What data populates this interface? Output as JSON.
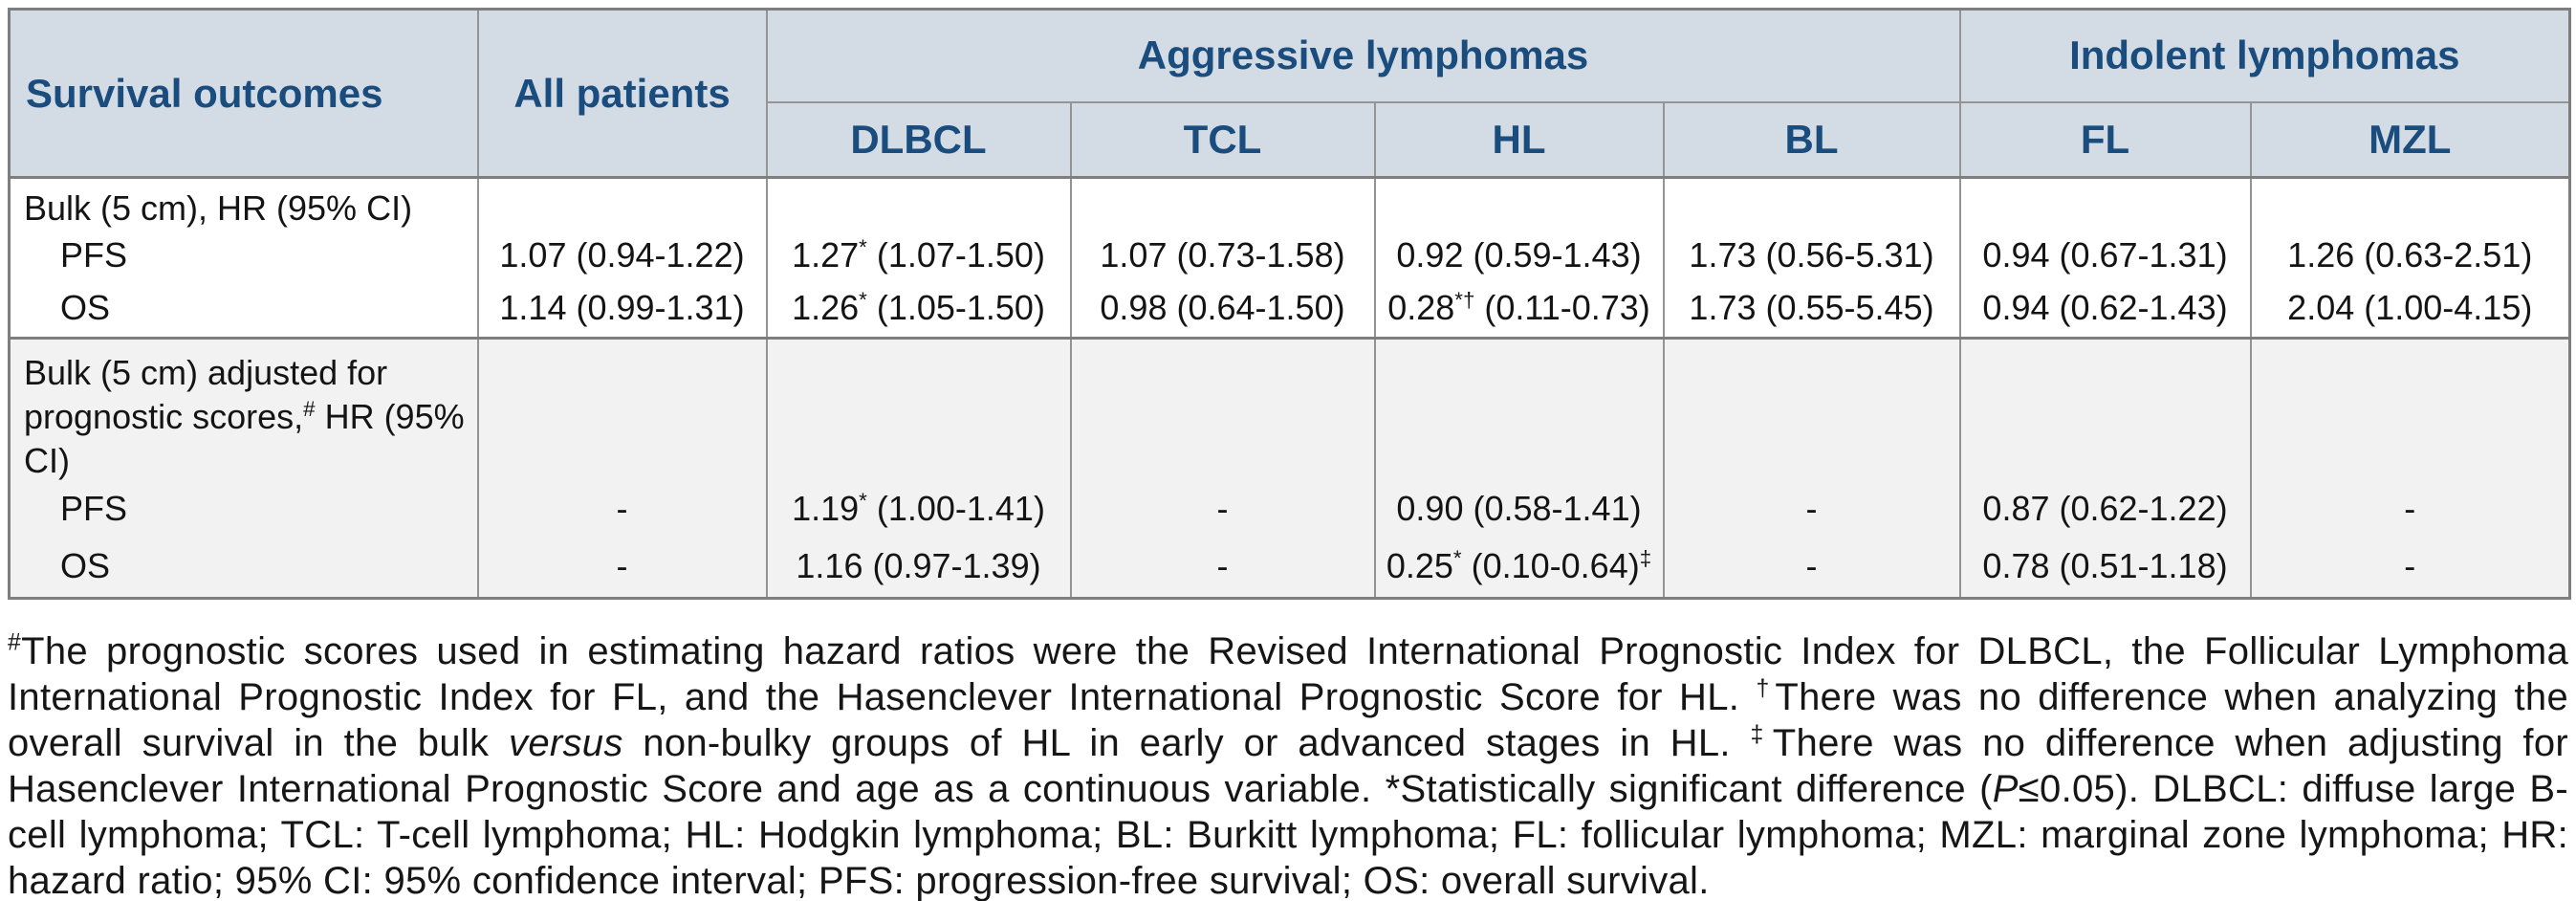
{
  "colors": {
    "header_bg": "#d3dce5",
    "header_text": "#1a4c7e",
    "section2_bg": "#f2f2f3",
    "border": "#949494",
    "body_text": "#161616"
  },
  "header": {
    "survival_outcomes": "Survival outcomes",
    "all_patients": "All patients",
    "group_aggressive": "Aggressive lymphomas",
    "group_indolent": "Indolent lymphomas",
    "subcolumns": [
      "DLBCL",
      "TCL",
      "HL",
      "BL",
      "FL",
      "MZL"
    ]
  },
  "sections": [
    {
      "label": [
        {
          "t": "Bulk (5 cm), HR (95% CI)"
        }
      ],
      "rows": [
        {
          "label": "PFS",
          "values": [
            "1.07 (0.94-1.22)",
            [
              {
                "t": "1.27"
              },
              {
                "t": "*",
                "sup": true
              },
              {
                "t": " (1.07-1.50)"
              }
            ],
            "1.07 (0.73-1.58)",
            "0.92 (0.59-1.43)",
            "1.73 (0.56-5.31)",
            "0.94 (0.67-1.31)",
            "1.26 (0.63-2.51)"
          ]
        },
        {
          "label": "OS",
          "values": [
            "1.14 (0.99-1.31)",
            [
              {
                "t": "1.26"
              },
              {
                "t": "*",
                "sup": true
              },
              {
                "t": " (1.05-1.50)"
              }
            ],
            "0.98 (0.64-1.50)",
            [
              {
                "t": "0.28"
              },
              {
                "t": "*†",
                "sup": true
              },
              {
                "t": " (0.11-0.73)"
              }
            ],
            "1.73 (0.55-5.45)",
            "0.94 (0.62-1.43)",
            "2.04 (1.00-4.15)"
          ]
        }
      ]
    },
    {
      "label": [
        {
          "t": "Bulk (5 cm) adjusted for prognostic scores,"
        },
        {
          "t": "#",
          "sup": true
        },
        {
          "t": " HR (95% CI)"
        }
      ],
      "rows": [
        {
          "label": "PFS",
          "values": [
            "-",
            [
              {
                "t": "1.19"
              },
              {
                "t": "*",
                "sup": true
              },
              {
                "t": " (1.00-1.41)"
              }
            ],
            "-",
            "0.90 (0.58-1.41)",
            "-",
            "0.87 (0.62-1.22)",
            "-"
          ]
        },
        {
          "label": "OS",
          "values": [
            "-",
            "1.16 (0.97-1.39)",
            "-",
            [
              {
                "t": "0.25"
              },
              {
                "t": "*",
                "sup": true
              },
              {
                "t": " (0.10-0.64)"
              },
              {
                "t": "‡",
                "sup": true
              }
            ],
            "-",
            "0.78 (0.51-1.18)",
            "-"
          ]
        }
      ]
    }
  ],
  "footnote": {
    "segments": [
      {
        "t": "#",
        "sup": true
      },
      {
        "t": "The prognostic scores used in estimating hazard ratios were the Revised International Prognostic Index for DLBCL, the Follicular Lymphoma International Prognostic Index for FL, and the Hasenclever International Prognostic Score for HL. "
      },
      {
        "t": "†",
        "sup": true
      },
      {
        "t": "There was no difference when analyzing the overall survival in the bulk "
      },
      {
        "t": "versus",
        "i": true
      },
      {
        "t": " non-bulky groups of HL in early or advanced stages in HL. "
      },
      {
        "t": "‡",
        "sup": true
      },
      {
        "t": "There was no difference when adjusting for Hasenclever International Prognostic Score and age as a continuous variable. *Statistically significant difference ("
      },
      {
        "t": "P",
        "i": true
      },
      {
        "t": "≤0.05). DLBCL: diffuse large B-cell lymphoma; TCL: T-cell lymphoma; HL: Hodgkin lymphoma; BL: Burkitt lymphoma; FL: follicular lymphoma; MZL: marginal zone lymphoma; HR: hazard ratio; 95% CI: 95% confidence interval; PFS: progression-free survival; OS: overall survival."
      }
    ]
  }
}
